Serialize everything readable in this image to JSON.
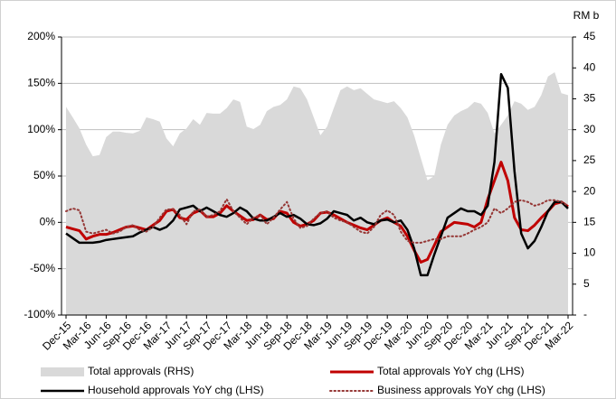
{
  "chart_data": {
    "type": "line",
    "y2_title": "RM b",
    "categories": [
      "Dec-15",
      null,
      null,
      "Mar-16",
      null,
      null,
      "Jun-16",
      null,
      null,
      "Sep-16",
      null,
      null,
      "Dec-16",
      null,
      null,
      "Mar-17",
      null,
      null,
      "Jun-17",
      null,
      null,
      "Sep-17",
      null,
      null,
      "Dec-17",
      null,
      null,
      "Mar-18",
      null,
      null,
      "Jun-18",
      null,
      null,
      "Sep-18",
      null,
      null,
      "Dec-18",
      null,
      null,
      "Mar-19",
      null,
      null,
      "Jun-19",
      null,
      null,
      "Sep-19",
      null,
      null,
      "Dec-19",
      null,
      null,
      "Mar-20",
      null,
      null,
      "Jun-20",
      null,
      null,
      "Sep-20",
      null,
      null,
      "Dec-20",
      null,
      null,
      "Mar-21",
      null,
      null,
      "Jun-21",
      null,
      null,
      "Sep-21",
      null,
      null,
      "Dec-21",
      null,
      null,
      "Mar-22"
    ],
    "ylim": [
      -100,
      200
    ],
    "yticks": [
      {
        "value": -100,
        "label": "-100%"
      },
      {
        "value": -50,
        "label": "-50%"
      },
      {
        "value": 0,
        "label": "0%"
      },
      {
        "value": 50,
        "label": "50%"
      },
      {
        "value": 100,
        "label": "100%"
      },
      {
        "value": 150,
        "label": "150%"
      },
      {
        "value": 200,
        "label": "200%"
      }
    ],
    "y2lim": [
      0,
      45
    ],
    "y2ticks": [
      {
        "value": 0,
        "label": "-"
      },
      5,
      10,
      15,
      20,
      25,
      30,
      35,
      40,
      45
    ],
    "grid": true,
    "series": [
      {
        "name": "Total approvals (RHS)",
        "type": "area",
        "axis": "y2",
        "color": "#d9d9d9",
        "values": [
          33.7,
          32.0,
          30.2,
          27.6,
          25.7,
          25.9,
          28.8,
          29.7,
          29.7,
          29.5,
          29.4,
          29.8,
          32.0,
          31.7,
          31.3,
          28.6,
          27.3,
          29.4,
          30.2,
          31.7,
          30.8,
          32.7,
          32.6,
          32.6,
          33.5,
          34.9,
          34.5,
          30.5,
          30.1,
          30.8,
          33.0,
          33.7,
          34.0,
          34.9,
          37.0,
          36.7,
          34.9,
          32.0,
          29.1,
          30.5,
          33.5,
          36.4,
          37.0,
          36.4,
          36.7,
          35.8,
          34.9,
          34.6,
          34.3,
          34.6,
          33.5,
          32.0,
          29.1,
          25.4,
          21.8,
          22.5,
          27.6,
          30.8,
          32.3,
          33.0,
          33.5,
          34.5,
          34.2,
          32.7,
          29.4,
          30.8,
          32.3,
          34.6,
          34.2,
          33.2,
          33.7,
          35.6,
          38.6,
          39.3,
          35.9,
          35.6
        ]
      },
      {
        "name": "Total approvals YoY chg (LHS)",
        "type": "line",
        "color": "#c00000",
        "width": 3,
        "values": [
          -5,
          -7,
          -9,
          -18,
          -15,
          -13,
          -13,
          -11,
          -8,
          -5,
          -4,
          -6,
          -8,
          -3,
          2,
          12,
          14,
          5,
          3,
          10,
          13,
          6,
          6,
          10,
          18,
          12,
          7,
          2,
          3,
          8,
          3,
          4,
          12,
          10,
          0,
          -4,
          -2,
          2,
          10,
          11,
          8,
          4,
          0,
          -3,
          -6,
          -8,
          -3,
          2,
          5,
          0,
          -4,
          -15,
          -30,
          -43,
          -40,
          -25,
          -10,
          -5,
          0,
          -1,
          -2,
          -5,
          0,
          25,
          45,
          65,
          45,
          5,
          -8,
          -9,
          -3,
          5,
          12,
          20,
          22,
          17
        ]
      },
      {
        "name": "Household approvals YoY chg (LHS)",
        "type": "line",
        "color": "#000000",
        "width": 2.5,
        "values": [
          -12,
          -17,
          -22,
          -22,
          -22,
          -21,
          -19,
          -18,
          -17,
          -16,
          -15,
          -11,
          -8,
          -5,
          -8,
          -5,
          2,
          14,
          16,
          18,
          12,
          16,
          12,
          8,
          6,
          10,
          16,
          12,
          4,
          2,
          2,
          6,
          10,
          6,
          8,
          4,
          -2,
          -3,
          -1,
          4,
          12,
          10,
          8,
          2,
          5,
          0,
          -2,
          2,
          3,
          0,
          2,
          -8,
          -28,
          -57,
          -57,
          -35,
          -15,
          5,
          10,
          15,
          12,
          12,
          8,
          18,
          65,
          160,
          145,
          55,
          -12,
          -28,
          -20,
          -5,
          12,
          22,
          22,
          15
        ]
      },
      {
        "name": "Business approvals YoY chg (LHS)",
        "type": "line",
        "color": "#953735",
        "width": 2,
        "dash": "dotted",
        "values": [
          12,
          15,
          13,
          -10,
          -12,
          -10,
          -8,
          -12,
          -10,
          -5,
          -3,
          -8,
          -10,
          -5,
          5,
          14,
          14,
          8,
          -2,
          12,
          14,
          6,
          8,
          12,
          25,
          12,
          5,
          -2,
          5,
          8,
          -2,
          5,
          14,
          22,
          4,
          -6,
          -4,
          4,
          10,
          12,
          5,
          2,
          0,
          -5,
          -10,
          -12,
          -5,
          8,
          13,
          8,
          -10,
          -20,
          -22,
          -22,
          -20,
          -18,
          -18,
          -15,
          -15,
          -15,
          -12,
          -8,
          -5,
          0,
          15,
          10,
          15,
          22,
          24,
          22,
          18,
          20,
          24,
          24,
          22,
          18
        ]
      }
    ]
  }
}
